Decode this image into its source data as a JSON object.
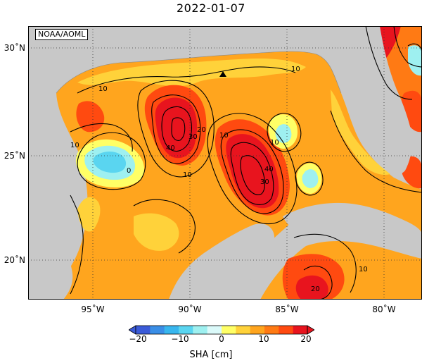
{
  "title": "2022-01-07",
  "credit": "NOAA/AOML",
  "lat_labels": [
    "30˚N",
    "25˚N",
    "20˚N"
  ],
  "lon_labels": [
    "95˚W",
    "90˚W",
    "85˚W",
    "80˚W"
  ],
  "colorbar": {
    "ticks": [
      "−20",
      "−10",
      "0",
      "10",
      "20"
    ],
    "unit": "SHA [cm]",
    "min": -20,
    "max": 20,
    "colors": [
      "#3b5bd8",
      "#3a8ee6",
      "#38b6ee",
      "#5ad5f0",
      "#9ef0f0",
      "#dbfafa",
      "#ffff66",
      "#ffd23a",
      "#ffa51e",
      "#ff7a14",
      "#ff4a10",
      "#e8141e"
    ]
  },
  "contour_labels": [
    "10",
    "10",
    "10",
    "40",
    "30",
    "20",
    "10",
    "10",
    "40",
    "30",
    "10",
    "0",
    "10",
    "20"
  ],
  "marker": "triangle-marker"
}
